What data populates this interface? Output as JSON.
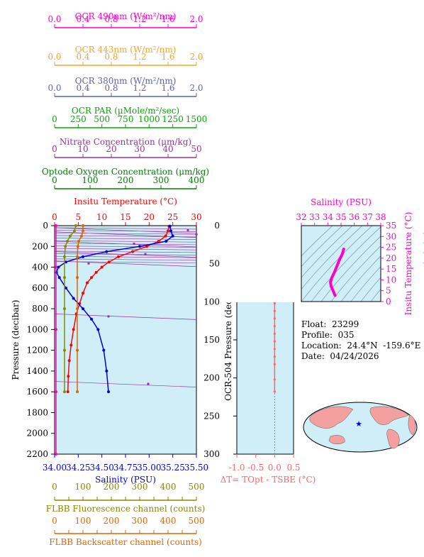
{
  "colors": {
    "ocr490": "#ff00cc",
    "ocr443": "#f5a623",
    "ocr380": "#6060b0",
    "par": "#00aa00",
    "nitrate": "#993399",
    "oxygen": "#008000",
    "temperature": "#ff0000",
    "salinity": "#0000dd",
    "fluorescence": "#888800",
    "backscatter": "#dd6600",
    "panel_bg": "#d0eef8",
    "dt": "#ff6666"
  },
  "info": {
    "float": "Float:  23299",
    "profile": "Profile:  035",
    "location": "Location:  24.4°N  -159.6°E",
    "date": "Date:  04/24/2026"
  },
  "chart_data": [
    {
      "id": "main-profile",
      "type": "line",
      "ylabel": "Pressure (decibar)",
      "ylim": [
        2200,
        0
      ],
      "yticks": [
        0,
        200,
        400,
        600,
        800,
        1000,
        1200,
        1400,
        1600,
        1800,
        2000,
        2200
      ],
      "top_axes": [
        {
          "key": "ocr490",
          "label": "OCR 490nm (W/m²/nm)",
          "lim": [
            0,
            2.0
          ],
          "ticks": [
            "0.0",
            "0.4",
            "0.8",
            "1.2",
            "1.6",
            "2.0"
          ]
        },
        {
          "key": "ocr443",
          "label": "OCR 443nm (W/m²/nm)",
          "lim": [
            0,
            2.0
          ],
          "ticks": [
            "0.0",
            "0.4",
            "0.8",
            "1.2",
            "1.6",
            "2.0"
          ]
        },
        {
          "key": "ocr380",
          "label": "OCR 380nm (W/m²/nm)",
          "lim": [
            0,
            2.0
          ],
          "ticks": [
            "0.0",
            "0.4",
            "0.8",
            "1.2",
            "1.6",
            "2.0"
          ]
        },
        {
          "key": "par",
          "label": "OCR PAR (μMole/m²/sec)",
          "lim": [
            0,
            1500
          ],
          "ticks": [
            "0",
            "250",
            "500",
            "750",
            "1000",
            "1250",
            "1500"
          ]
        },
        {
          "key": "nitrate",
          "label": "Nitrate Concentration (μm/kg)",
          "lim": [
            0,
            50
          ],
          "ticks": [
            "0",
            "10",
            "20",
            "30",
            "40",
            "50"
          ]
        },
        {
          "key": "oxygen",
          "label": "Optode Oxygen Concentration (μm/kg)",
          "lim": [
            0,
            400
          ],
          "ticks": [
            "0",
            "100",
            "200",
            "300",
            "400"
          ]
        },
        {
          "key": "temperature",
          "label": "Insitu Temperature (°C)",
          "lim": [
            0,
            30
          ],
          "ticks": [
            "0",
            "5",
            "10",
            "15",
            "20",
            "25",
            "30"
          ]
        }
      ],
      "bottom_axes": [
        {
          "key": "salinity",
          "label": "Salinity (PSU)",
          "lim": [
            34.0,
            35.5
          ],
          "ticks": [
            "34.00",
            "34.25",
            "34.50",
            "34.75",
            "35.00",
            "35.25",
            "35.50"
          ]
        },
        {
          "key": "fluorescence",
          "label": "FLBB Fluorescence channel (counts)",
          "lim": [
            0,
            500
          ],
          "ticks": [
            "0",
            "50",
            "100",
            "150",
            "200",
            "250",
            "300",
            "350",
            "400",
            "450",
            "500"
          ]
        },
        {
          "key": "backscatter",
          "label": "FLBB Backscatter channel (counts)",
          "lim": [
            0,
            500
          ],
          "ticks": [
            "0",
            "50",
            "100",
            "150",
            "200",
            "250",
            "300",
            "350",
            "400",
            "450",
            "500"
          ]
        }
      ],
      "series": [
        {
          "key": "temperature",
          "x": [
            24.2,
            24.0,
            23.5,
            22.0,
            19.5,
            16.5,
            13.5,
            11.5,
            10.0,
            8.8,
            7.8,
            6.9,
            6.0,
            5.3,
            4.6,
            4.0,
            3.5,
            3.1,
            2.9,
            2.8
          ],
          "y": [
            5,
            50,
            100,
            150,
            200,
            250,
            300,
            350,
            400,
            450,
            500,
            550,
            650,
            750,
            850,
            1000,
            1150,
            1300,
            1450,
            1600
          ]
        },
        {
          "key": "salinity",
          "x": [
            35.22,
            35.23,
            35.25,
            35.18,
            34.9,
            34.55,
            34.3,
            34.12,
            34.04,
            34.02,
            34.05,
            34.12,
            34.2,
            34.3,
            34.39,
            34.46,
            34.52,
            34.55,
            34.57
          ],
          "y": [
            5,
            50,
            100,
            150,
            200,
            250,
            300,
            350,
            400,
            450,
            500,
            600,
            700,
            800,
            900,
            1000,
            1200,
            1400,
            1600
          ]
        },
        {
          "key": "ocr490",
          "x": [
            0.02,
            0.02,
            0.02,
            0.02,
            0.02
          ],
          "y": [
            0,
            400,
            1000,
            1600,
            2200
          ]
        },
        {
          "key": "fluorescence",
          "x": [
            75,
            70,
            55,
            45,
            38,
            35,
            35,
            35,
            35,
            35
          ],
          "y": [
            0,
            50,
            100,
            150,
            200,
            300,
            500,
            800,
            1200,
            1600
          ]
        },
        {
          "key": "backscatter",
          "x": [
            100,
            100,
            95,
            85,
            82,
            80,
            80,
            80,
            80,
            80
          ],
          "y": [
            0,
            50,
            100,
            150,
            200,
            300,
            500,
            800,
            1200,
            1600
          ]
        }
      ],
      "nitrate_stations": [
        {
          "y": 20,
          "x": 47
        },
        {
          "y": 60,
          "x": 50
        },
        {
          "y": 150,
          "x": 28
        },
        {
          "y": 250,
          "x": 32
        },
        {
          "y": 340,
          "x": 12
        },
        {
          "y": 850,
          "x": 19
        },
        {
          "y": 1500,
          "x": 33
        }
      ]
    },
    {
      "id": "delta-t",
      "type": "scatter",
      "ylabel": "OCR-504 Pressure (decibar)",
      "xlabel": "ΔT= TOpt - TSBE (°C)",
      "xlim": [
        -1.0,
        0.5
      ],
      "ylim": [
        300,
        0
      ],
      "xticks": [
        "-1.0",
        "-0.5",
        "0.0",
        "0.5"
      ],
      "yticks": [
        0,
        50,
        100,
        150,
        200,
        250,
        300
      ],
      "x": [
        0.0,
        0.0,
        0.01,
        0.0,
        -0.01,
        0.0,
        0.0,
        0.0,
        0.0,
        0.0,
        0.0,
        0.0,
        0.0,
        0.0,
        0.0,
        0.0,
        0.0,
        0.0,
        0.0,
        0.0,
        0.0
      ],
      "y": [
        2,
        12,
        22,
        32,
        42,
        52,
        62,
        72,
        82,
        92,
        102,
        112,
        122,
        132,
        142,
        152,
        162,
        172,
        182,
        202,
        218
      ]
    },
    {
      "id": "ts-diagram",
      "type": "line",
      "title": "Salinity (PSU)",
      "ylabel": "Insitu Temperature (°C)",
      "xlim": [
        32,
        38
      ],
      "ylim": [
        0,
        35
      ],
      "xticks": [
        "32",
        "33",
        "34",
        "35",
        "36",
        "37",
        "38"
      ],
      "yticks": [
        "0",
        "5",
        "10",
        "15",
        "20",
        "25",
        "30",
        "35"
      ],
      "x": [
        35.2,
        35.1,
        34.9,
        34.7,
        34.5,
        34.3,
        34.2,
        34.25,
        34.4,
        34.5,
        34.55
      ],
      "y": [
        24.2,
        22.0,
        19.5,
        16.5,
        13.5,
        11.0,
        9.0,
        7.0,
        5.0,
        3.5,
        2.8
      ]
    }
  ]
}
